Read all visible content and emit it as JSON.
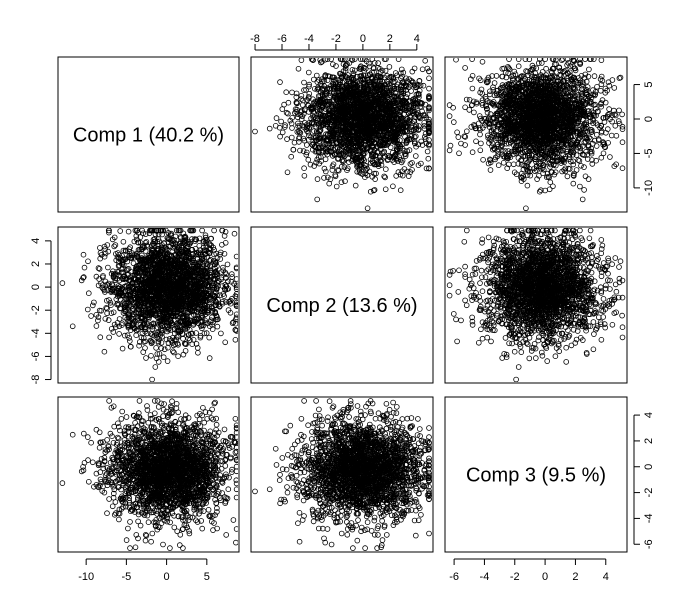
{
  "chart_data": {
    "type": "scatter",
    "layout": "pairs-matrix",
    "variables": [
      "Comp 1 (40.2 %)",
      "Comp 2 (13.6 %)",
      "Comp 3 (9.5 %)"
    ],
    "ranges": {
      "comp1": [
        -13.5,
        9.0
      ],
      "comp2": [
        -8.3,
        5.2
      ],
      "comp3": [
        -6.6,
        5.4
      ]
    },
    "ticks": {
      "comp1": [
        -10,
        -5,
        0,
        5
      ],
      "comp2": [
        -8,
        -6,
        -4,
        -2,
        0,
        2,
        4
      ],
      "comp3": [
        -6,
        -4,
        -2,
        0,
        2,
        4
      ],
      "comp3_right": [
        -10,
        -5,
        0,
        5
      ]
    },
    "tick_labels": {
      "comp1": [
        "-10",
        "-5",
        "0",
        "5"
      ],
      "comp2": [
        "-8",
        "-6",
        "-4",
        "-2",
        "0",
        "2",
        "4"
      ],
      "comp3": [
        "-6",
        "-4",
        "-2",
        "0",
        "2",
        "4"
      ],
      "comp3_right": [
        "-10",
        "-5",
        "0",
        "5"
      ]
    },
    "point_count": 2500,
    "spread": {
      "comp1": [
        0.2,
        3.5
      ],
      "comp2": [
        0.0,
        2.2
      ],
      "comp3": [
        -0.3,
        1.9
      ]
    },
    "marker": "open-circle",
    "grid": false,
    "legend": "none"
  }
}
